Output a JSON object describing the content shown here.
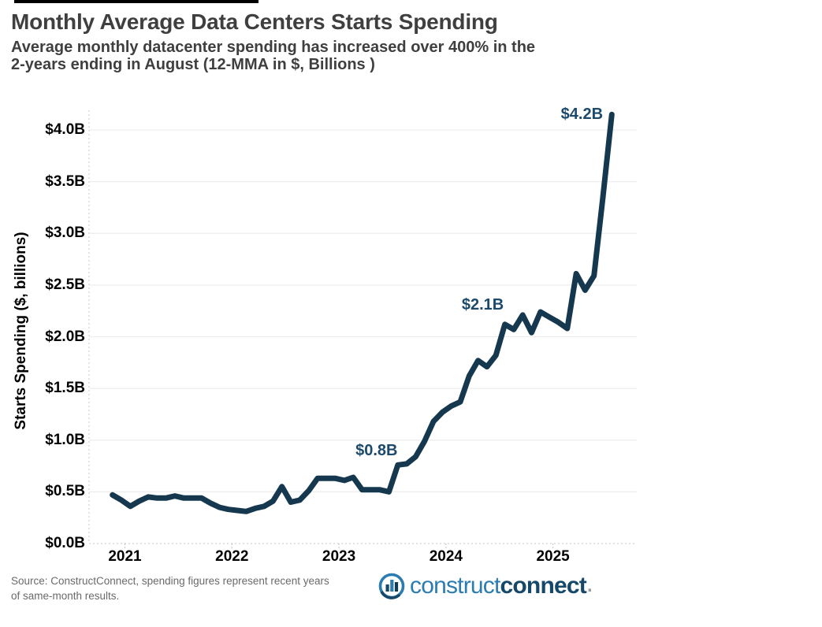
{
  "header": {
    "title": "Monthly Average Data Centers Starts Spending",
    "subtitle_line1": "Average monthly datacenter spending has increased over 400% in the",
    "subtitle_line2": "2-years ending in August (12-MMA in $, Billions )"
  },
  "chart_data": {
    "type": "line",
    "title": "Monthly Average Data Centers Starts Spending",
    "xlabel": "",
    "ylabel": "Starts Spending ($, billions)",
    "ylim": [
      0,
      4.3
    ],
    "grid": true,
    "line_color": "#15384f",
    "annotation_color": "#1d4a6b",
    "y_tick_labels": [
      "$0.0B",
      "$0.5B",
      "$1.0B",
      "$1.5B",
      "$2.0B",
      "$2.5B",
      "$3.0B",
      "$3.5B",
      "$4.0B"
    ],
    "x_tick_labels": [
      "2021",
      "2022",
      "2023",
      "2024",
      "2025"
    ],
    "months": [
      "Dec 2020",
      "Jan 2021",
      "Feb 2021",
      "Mar 2021",
      "Apr 2021",
      "May 2021",
      "Jun 2021",
      "Jul 2021",
      "Aug 2021",
      "Sep 2021",
      "Oct 2021",
      "Nov 2021",
      "Dec 2021",
      "Jan 2022",
      "Feb 2022",
      "Mar 2022",
      "Apr 2022",
      "May 2022",
      "Jun 2022",
      "Jul 2022",
      "Aug 2022",
      "Sep 2022",
      "Oct 2022",
      "Nov 2022",
      "Dec 2022",
      "Jan 2023",
      "Feb 2023",
      "Mar 2023",
      "Apr 2023",
      "May 2023",
      "Jun 2023",
      "Jul 2023",
      "Aug 2023",
      "Sep 2023",
      "Oct 2023",
      "Nov 2023",
      "Dec 2023",
      "Jan 2024",
      "Feb 2024",
      "Mar 2024",
      "Apr 2024",
      "May 2024",
      "Jun 2024",
      "Jul 2024",
      "Aug 2024",
      "Sep 2024",
      "Oct 2024",
      "Nov 2024",
      "Dec 2024",
      "Jan 2025",
      "Feb 2025",
      "Mar 2025",
      "Apr 2025",
      "May 2025",
      "Jun 2025",
      "Jul 2025",
      "Aug 2025"
    ],
    "values": [
      0.47,
      0.42,
      0.36,
      0.41,
      0.45,
      0.44,
      0.44,
      0.46,
      0.44,
      0.44,
      0.44,
      0.39,
      0.35,
      0.33,
      0.32,
      0.31,
      0.34,
      0.36,
      0.41,
      0.55,
      0.4,
      0.42,
      0.51,
      0.63,
      0.63,
      0.63,
      0.61,
      0.64,
      0.52,
      0.52,
      0.52,
      0.5,
      0.76,
      0.77,
      0.84,
      0.99,
      1.18,
      1.27,
      1.33,
      1.37,
      1.62,
      1.77,
      1.71,
      1.82,
      2.12,
      2.07,
      2.21,
      2.04,
      2.24,
      2.19,
      2.14,
      2.08,
      2.61,
      2.45,
      2.59,
      3.35,
      4.15
    ],
    "annotations": [
      {
        "label": "$0.8B",
        "month": "Aug 2023",
        "value": 0.8
      },
      {
        "label": "$2.1B",
        "month": "Aug 2024",
        "value": 2.1
      },
      {
        "label": "$4.2B",
        "month": "Aug 2025",
        "value": 4.2
      }
    ]
  },
  "footer": {
    "source_line1": "Source: ConstructConnect, spending figures represent recent years",
    "source_line2": "of same-month results.",
    "logo": {
      "part1": "construct",
      "part2": "connect",
      "suffix": "."
    }
  }
}
